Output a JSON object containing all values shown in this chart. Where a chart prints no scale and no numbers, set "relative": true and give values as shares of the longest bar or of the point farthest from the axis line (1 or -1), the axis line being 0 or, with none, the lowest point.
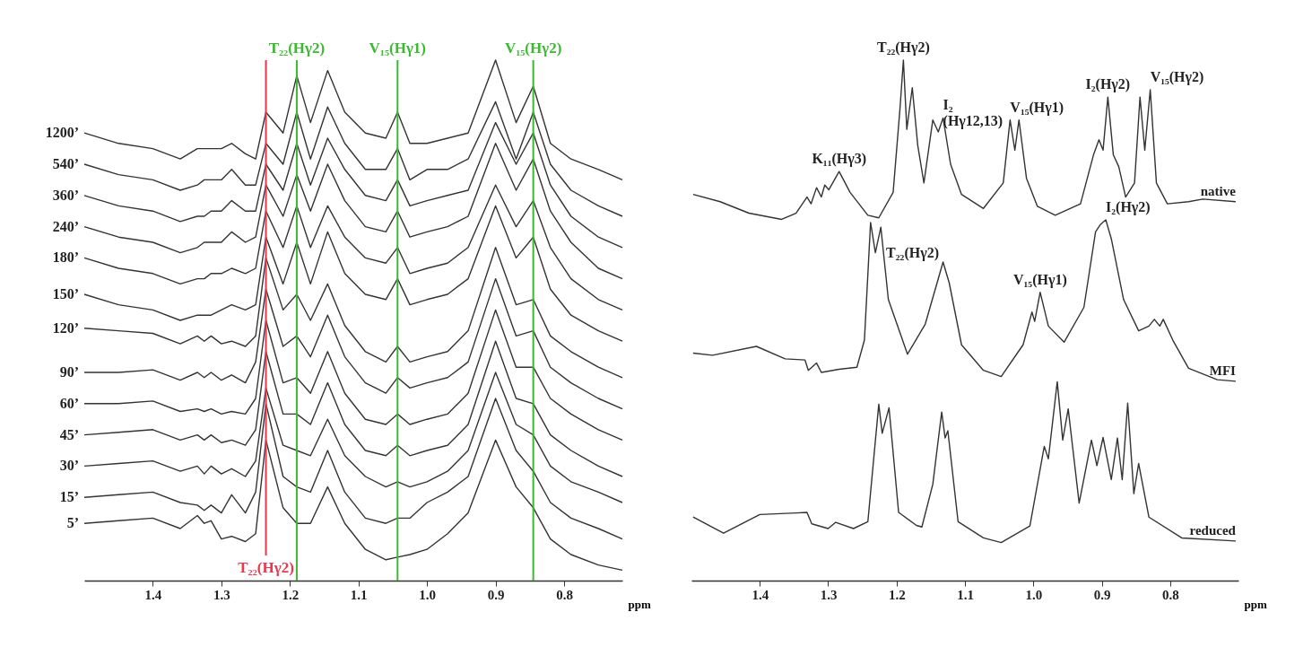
{
  "chart_data": [
    {
      "type": "line",
      "relative": true,
      "xlabel": "ppm",
      "xlim": [
        1.5,
        0.715
      ],
      "xticks": [
        1.4,
        1.3,
        1.2,
        1.1,
        {
          "value": 1.0,
          "label": "1.0"
        },
        0.9,
        0.8
      ],
      "legend": false,
      "x": [
        1.5,
        1.45,
        1.4,
        1.36,
        1.335,
        1.325,
        1.315,
        1.3,
        1.285,
        1.265,
        1.25,
        1.235,
        1.21,
        1.19,
        1.17,
        1.145,
        1.12,
        1.09,
        1.06,
        1.043,
        1.025,
        1.0,
        0.97,
        0.94,
        0.9,
        0.87,
        0.845,
        0.82,
        0.79,
        0.75,
        0.715
      ],
      "series": [
        {
          "name": "1200’",
          "color": "#333333",
          "values": [
            0.86,
            0.84,
            0.83,
            0.81,
            0.83,
            0.83,
            0.83,
            0.83,
            0.84,
            0.82,
            0.81,
            0.9,
            0.86,
            0.97,
            0.88,
            0.98,
            0.9,
            0.86,
            0.85,
            0.9,
            0.84,
            0.84,
            0.85,
            0.86,
            1.0,
            0.88,
            0.95,
            0.84,
            0.81,
            0.79,
            0.77
          ]
        },
        {
          "name": "540’",
          "color": "#333333",
          "values": [
            0.8,
            0.78,
            0.77,
            0.75,
            0.76,
            0.77,
            0.77,
            0.77,
            0.79,
            0.76,
            0.76,
            0.84,
            0.8,
            0.9,
            0.81,
            0.91,
            0.84,
            0.79,
            0.79,
            0.83,
            0.77,
            0.79,
            0.79,
            0.81,
            0.92,
            0.81,
            0.9,
            0.8,
            0.75,
            0.72,
            0.7
          ]
        },
        {
          "name": "360’",
          "color": "#333333",
          "values": [
            0.74,
            0.72,
            0.71,
            0.69,
            0.7,
            0.7,
            0.71,
            0.71,
            0.73,
            0.71,
            0.71,
            0.8,
            0.75,
            0.84,
            0.76,
            0.85,
            0.79,
            0.74,
            0.73,
            0.77,
            0.72,
            0.73,
            0.74,
            0.75,
            0.88,
            0.8,
            0.86,
            0.76,
            0.7,
            0.66,
            0.64
          ]
        },
        {
          "name": "240’",
          "color": "#333333",
          "values": [
            0.68,
            0.66,
            0.65,
            0.63,
            0.64,
            0.65,
            0.65,
            0.65,
            0.67,
            0.65,
            0.66,
            0.76,
            0.7,
            0.78,
            0.71,
            0.8,
            0.73,
            0.68,
            0.67,
            0.71,
            0.66,
            0.67,
            0.68,
            0.7,
            0.84,
            0.75,
            0.81,
            0.71,
            0.65,
            0.6,
            0.58
          ]
        },
        {
          "name": "180’",
          "color": "#333333",
          "values": [
            0.62,
            0.6,
            0.59,
            0.57,
            0.58,
            0.58,
            0.59,
            0.59,
            0.6,
            0.59,
            0.6,
            0.71,
            0.64,
            0.72,
            0.64,
            0.72,
            0.66,
            0.62,
            0.61,
            0.64,
            0.59,
            0.6,
            0.61,
            0.64,
            0.76,
            0.68,
            0.73,
            0.64,
            0.58,
            0.54,
            0.52
          ]
        },
        {
          "name": "150’",
          "color": "#333333",
          "values": [
            0.55,
            0.53,
            0.52,
            0.5,
            0.51,
            0.51,
            0.51,
            0.52,
            0.53,
            0.52,
            0.53,
            0.66,
            0.57,
            0.65,
            0.57,
            0.67,
            0.59,
            0.55,
            0.54,
            0.58,
            0.53,
            0.54,
            0.55,
            0.58,
            0.72,
            0.62,
            0.66,
            0.56,
            0.51,
            0.48,
            0.46
          ]
        },
        {
          "name": "120’",
          "color": "#333333",
          "values": [
            0.485,
            0.48,
            0.475,
            0.455,
            0.47,
            0.46,
            0.47,
            0.455,
            0.46,
            0.45,
            0.47,
            0.62,
            0.52,
            0.55,
            0.5,
            0.57,
            0.49,
            0.44,
            0.42,
            0.45,
            0.42,
            0.43,
            0.44,
            0.48,
            0.64,
            0.53,
            0.54,
            0.47,
            0.44,
            0.41,
            0.39
          ]
        },
        {
          "name": "90’",
          "color": "#333333",
          "values": [
            0.4,
            0.4,
            0.405,
            0.385,
            0.4,
            0.39,
            0.4,
            0.385,
            0.395,
            0.38,
            0.42,
            0.56,
            0.45,
            0.47,
            0.43,
            0.51,
            0.43,
            0.38,
            0.36,
            0.39,
            0.37,
            0.38,
            0.39,
            0.42,
            0.58,
            0.47,
            0.48,
            0.41,
            0.38,
            0.35,
            0.33
          ]
        },
        {
          "name": "60’",
          "color": "#333333",
          "values": [
            0.34,
            0.34,
            0.345,
            0.325,
            0.33,
            0.325,
            0.33,
            0.32,
            0.325,
            0.32,
            0.35,
            0.5,
            0.38,
            0.39,
            0.36,
            0.44,
            0.36,
            0.31,
            0.3,
            0.32,
            0.3,
            0.31,
            0.32,
            0.36,
            0.52,
            0.41,
            0.41,
            0.35,
            0.32,
            0.29,
            0.27
          ]
        },
        {
          "name": "45’",
          "color": "#333333",
          "values": [
            0.28,
            0.285,
            0.29,
            0.27,
            0.28,
            0.27,
            0.28,
            0.265,
            0.27,
            0.26,
            0.29,
            0.44,
            0.32,
            0.32,
            0.3,
            0.38,
            0.3,
            0.25,
            0.24,
            0.26,
            0.24,
            0.25,
            0.26,
            0.3,
            0.46,
            0.35,
            0.34,
            0.28,
            0.25,
            0.22,
            0.2
          ]
        },
        {
          "name": "30’",
          "color": "#333333",
          "values": [
            0.22,
            0.225,
            0.23,
            0.21,
            0.22,
            0.205,
            0.22,
            0.205,
            0.215,
            0.2,
            0.23,
            0.37,
            0.26,
            0.25,
            0.24,
            0.31,
            0.24,
            0.2,
            0.18,
            0.19,
            0.18,
            0.19,
            0.21,
            0.25,
            0.4,
            0.3,
            0.28,
            0.22,
            0.19,
            0.17,
            0.15
          ]
        },
        {
          "name": "15’",
          "color": "#333333",
          "values": [
            0.16,
            0.165,
            0.17,
            0.15,
            0.145,
            0.135,
            0.145,
            0.13,
            0.165,
            0.13,
            0.17,
            0.34,
            0.2,
            0.18,
            0.17,
            0.25,
            0.17,
            0.12,
            0.11,
            0.12,
            0.12,
            0.15,
            0.17,
            0.2,
            0.35,
            0.25,
            0.21,
            0.15,
            0.12,
            0.1,
            0.08
          ]
        },
        {
          "name": "5’",
          "color": "#333333",
          "values": [
            0.11,
            0.115,
            0.12,
            0.1,
            0.125,
            0.11,
            0.115,
            0.08,
            0.085,
            0.075,
            0.09,
            0.27,
            0.14,
            0.11,
            0.11,
            0.18,
            0.11,
            0.06,
            0.04,
            0.045,
            0.05,
            0.06,
            0.09,
            0.13,
            0.27,
            0.18,
            0.14,
            0.08,
            0.05,
            0.03,
            0.02
          ]
        }
      ],
      "ref_lines": [
        {
          "axis": "x",
          "value": 1.19,
          "label": "T₂₂(Hγ2)",
          "color": "#3cb832"
        },
        {
          "axis": "x",
          "value": 1.235,
          "label": "T₂₂(Hγ2)",
          "color": "#e8384f"
        },
        {
          "axis": "x",
          "value": 1.043,
          "label": "V₁₅(Hγ1)",
          "color": "#3cb832"
        },
        {
          "axis": "x",
          "value": 0.845,
          "label": "V₁₅(Hγ2)",
          "color": "#3cb832"
        }
      ]
    },
    {
      "type": "line",
      "relative": true,
      "xlabel": "ppm",
      "xlim": [
        1.5,
        0.7
      ],
      "xticks": [
        1.4,
        1.3,
        1.2,
        1.1,
        {
          "value": 1.0,
          "label": "1.0"
        },
        0.9,
        0.8
      ],
      "legend": false,
      "series": [
        {
          "name": "native",
          "color": "#333333",
          "x": [
            1.4975,
            1.458,
            1.416,
            1.368,
            1.347,
            1.331,
            1.325,
            1.317,
            1.31,
            1.305,
            1.299,
            1.284,
            1.268,
            1.242,
            1.226,
            1.205,
            1.195,
            1.19,
            1.185,
            1.177,
            1.169,
            1.16,
            1.147,
            1.139,
            1.132,
            1.121,
            1.105,
            1.073,
            1.044,
            1.034,
            1.027,
            1.021,
            1.01,
            0.994,
            0.968,
            0.931,
            0.912,
            0.904,
            0.898,
            0.891,
            0.883,
            0.875,
            0.865,
            0.852,
            0.844,
            0.837,
            0.829,
            0.82,
            0.804,
            0.773,
            0.752,
            0.704
          ],
          "values": [
            0.742,
            0.728,
            0.706,
            0.694,
            0.706,
            0.737,
            0.724,
            0.755,
            0.737,
            0.76,
            0.751,
            0.786,
            0.746,
            0.702,
            0.697,
            0.746,
            0.907,
            1.0,
            0.867,
            0.947,
            0.836,
            0.764,
            0.885,
            0.862,
            0.889,
            0.8,
            0.742,
            0.715,
            0.764,
            0.885,
            0.827,
            0.885,
            0.773,
            0.719,
            0.702,
            0.724,
            0.818,
            0.847,
            0.827,
            0.929,
            0.818,
            0.795,
            0.737,
            0.764,
            0.929,
            0.827,
            0.943,
            0.764,
            0.724,
            0.728,
            0.733,
            0.728
          ]
        },
        {
          "name": "MFI",
          "color": "#333333",
          "x": [
            1.4975,
            1.469,
            1.405,
            1.363,
            1.334,
            1.329,
            1.317,
            1.31,
            1.284,
            1.258,
            1.247,
            1.238,
            1.231,
            1.223,
            1.212,
            1.184,
            1.158,
            1.132,
            1.123,
            1.105,
            1.073,
            1.047,
            1.015,
            1.002,
            0.998,
            0.99,
            0.978,
            0.955,
            0.926,
            0.909,
            0.902,
            0.894,
            0.886,
            0.868,
            0.846,
            0.831,
            0.823,
            0.815,
            0.81,
            0.796,
            0.773,
            0.731,
            0.704
          ],
          "values": [
            0.437,
            0.433,
            0.45,
            0.426,
            0.424,
            0.404,
            0.418,
            0.4,
            0.406,
            0.41,
            0.462,
            0.688,
            0.63,
            0.679,
            0.54,
            0.435,
            0.493,
            0.612,
            0.572,
            0.453,
            0.404,
            0.392,
            0.453,
            0.516,
            0.498,
            0.554,
            0.489,
            0.458,
            0.525,
            0.67,
            0.684,
            0.693,
            0.657,
            0.54,
            0.48,
            0.489,
            0.502,
            0.489,
            0.502,
            0.462,
            0.408,
            0.386,
            0.383
          ]
        },
        {
          "name": "reduced",
          "color": "#333333",
          "x": [
            1.4975,
            1.453,
            1.4,
            1.347,
            1.331,
            1.324,
            1.3,
            1.289,
            1.263,
            1.242,
            1.226,
            1.221,
            1.211,
            1.197,
            1.171,
            1.163,
            1.147,
            1.134,
            1.129,
            1.125,
            1.11,
            1.073,
            1.047,
            1.005,
            0.984,
            0.978,
            0.965,
            0.957,
            0.949,
            0.933,
            0.915,
            0.907,
            0.898,
            0.886,
            0.877,
            0.87,
            0.862,
            0.853,
            0.846,
            0.831,
            0.783,
            0.704
          ],
          "values": [
            0.122,
            0.091,
            0.127,
            0.13,
            0.131,
            0.109,
            0.1,
            0.112,
            0.1,
            0.113,
            0.339,
            0.283,
            0.332,
            0.131,
            0.106,
            0.103,
            0.185,
            0.324,
            0.274,
            0.288,
            0.113,
            0.082,
            0.073,
            0.105,
            0.258,
            0.234,
            0.382,
            0.27,
            0.33,
            0.149,
            0.27,
            0.221,
            0.275,
            0.194,
            0.274,
            0.194,
            0.341,
            0.167,
            0.225,
            0.122,
            0.082,
            0.076
          ]
        }
      ],
      "annotations": [
        {
          "text": "K₁₁(Hγ3)",
          "x": 1.284,
          "y": 0.786
        },
        {
          "text": "I₂\n(Hγ12,13)",
          "x": 1.132,
          "y": 0.889
        },
        {
          "text": "T₂₂(Hγ2)",
          "x": 1.19,
          "y": 1.0
        },
        {
          "text": "V₁₅(Hγ1)",
          "x": 1.034,
          "y": 0.885
        },
        {
          "text": "I₂(Hγ2)",
          "x": 0.891,
          "y": 0.929
        },
        {
          "text": "V₁₅(Hγ2)",
          "x": 0.829,
          "y": 0.943
        },
        {
          "text": "T₂₂(Hγ2)",
          "x": 1.231,
          "y": 0.63
        },
        {
          "text": "V₁₅(Hγ1)",
          "x": 0.99,
          "y": 0.554
        },
        {
          "text": "I₂(Hγ2)",
          "x": 0.894,
          "y": 0.693
        }
      ]
    }
  ]
}
